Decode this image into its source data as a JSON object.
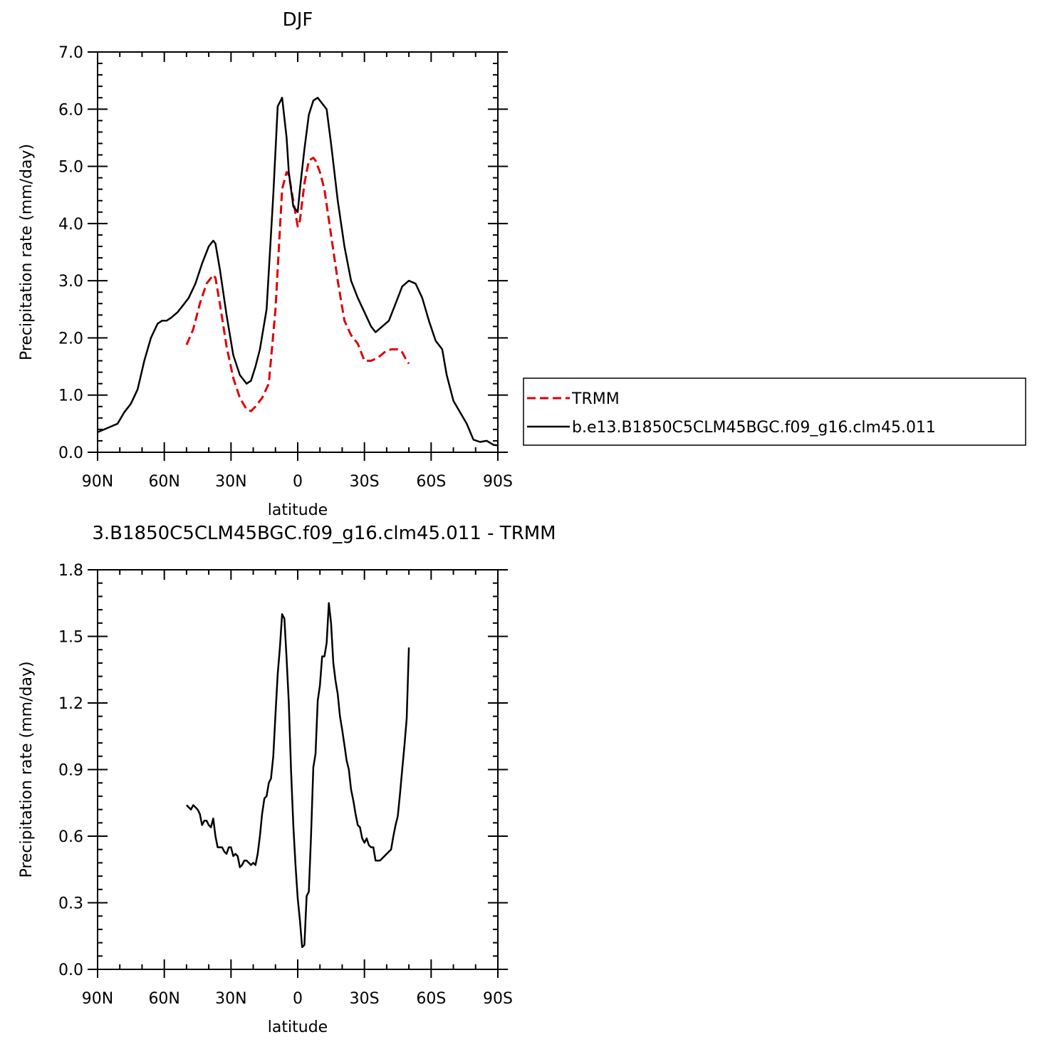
{
  "chart_data": [
    {
      "type": "line",
      "title": "DJF",
      "xlabel": "latitude",
      "ylabel": "Precipitation rate (mm/day)",
      "xlim": [
        90,
        -90
      ],
      "ylim": [
        0,
        7
      ],
      "xticks": [
        90,
        60,
        30,
        0,
        -30,
        -60,
        -90
      ],
      "xtick_labels": [
        "90N",
        "60N",
        "30N",
        "0",
        "30S",
        "60S",
        "90S"
      ],
      "yticks": [
        0,
        1,
        2,
        3,
        4,
        5,
        6,
        7
      ],
      "ytick_labels": [
        "0.0",
        "1.0",
        "2.0",
        "3.0",
        "4.0",
        "5.0",
        "6.0",
        "7.0"
      ],
      "legend_position": "right",
      "series": [
        {
          "name": "TRMM",
          "color": "#e00000",
          "dash": true,
          "x": [
            50,
            47,
            44,
            41,
            38,
            37,
            35,
            32,
            29,
            26,
            23,
            21,
            19,
            16,
            13,
            10,
            7,
            5,
            4,
            2,
            0,
            -1,
            -3,
            -5,
            -7,
            -8,
            -10,
            -12,
            -15,
            -18,
            -21,
            -24,
            -27,
            -30,
            -33,
            -36,
            -39,
            -42,
            -45,
            -47,
            -49,
            -50
          ],
          "y": [
            1.88,
            2.15,
            2.6,
            2.95,
            3.1,
            3.05,
            2.6,
            1.85,
            1.3,
            0.95,
            0.75,
            0.72,
            0.8,
            0.95,
            1.2,
            2.5,
            4.6,
            4.9,
            4.85,
            4.4,
            3.95,
            4.05,
            4.7,
            5.1,
            5.15,
            5.1,
            4.9,
            4.6,
            3.8,
            3.0,
            2.3,
            2.05,
            1.9,
            1.6,
            1.6,
            1.65,
            1.75,
            1.8,
            1.8,
            1.75,
            1.6,
            1.55
          ]
        },
        {
          "name": "b.e13.B1850C5CLM45BGC.f09_g16.clm45.011",
          "color": "#000000",
          "dash": false,
          "x": [
            90,
            87,
            84,
            81,
            78,
            75,
            72,
            69,
            66,
            63,
            61,
            59,
            57,
            54,
            51,
            49,
            46,
            43,
            40,
            38,
            37,
            35,
            32,
            29,
            26,
            23,
            21,
            19,
            17,
            14,
            11,
            9,
            7,
            5,
            4,
            2,
            0,
            -1,
            -3,
            -5,
            -7,
            -9,
            -11,
            -13,
            -15,
            -18,
            -21,
            -24,
            -27,
            -30,
            -33,
            -35,
            -38,
            -41,
            -44,
            -47,
            -50,
            -53,
            -56,
            -59,
            -62,
            -65,
            -67,
            -70,
            -73,
            -76,
            -79,
            -82,
            -85,
            -88,
            -90
          ],
          "y": [
            0.35,
            0.4,
            0.45,
            0.5,
            0.7,
            0.85,
            1.1,
            1.6,
            2.0,
            2.25,
            2.3,
            2.3,
            2.35,
            2.45,
            2.6,
            2.7,
            2.95,
            3.3,
            3.6,
            3.7,
            3.65,
            3.2,
            2.4,
            1.7,
            1.35,
            1.2,
            1.25,
            1.5,
            1.8,
            2.5,
            4.5,
            6.05,
            6.2,
            5.5,
            4.9,
            4.3,
            4.2,
            4.6,
            5.3,
            5.9,
            6.15,
            6.2,
            6.1,
            6.0,
            5.4,
            4.4,
            3.6,
            3.0,
            2.7,
            2.45,
            2.2,
            2.1,
            2.2,
            2.3,
            2.6,
            2.9,
            3.0,
            2.95,
            2.7,
            2.3,
            1.95,
            1.8,
            1.35,
            0.9,
            0.7,
            0.5,
            0.22,
            0.18,
            0.2,
            0.13,
            0.12
          ]
        }
      ]
    },
    {
      "type": "line",
      "title": "3.B1850C5CLM45BGC.f09_g16.clm45.011 - TRMM",
      "xlabel": "latitude",
      "ylabel": "Precipitation rate (mm/day)",
      "xlim": [
        90,
        -90
      ],
      "ylim": [
        0,
        1.8
      ],
      "xticks": [
        90,
        60,
        30,
        0,
        -30,
        -60,
        -90
      ],
      "xtick_labels": [
        "90N",
        "60N",
        "30N",
        "0",
        "30S",
        "60S",
        "90S"
      ],
      "yticks": [
        0,
        0.3,
        0.6,
        0.9,
        1.2,
        1.5,
        1.8
      ],
      "ytick_labels": [
        "0.0",
        "0.3",
        "0.6",
        "0.9",
        "1.2",
        "1.5",
        "1.8"
      ],
      "series": [
        {
          "color": "#000000",
          "dash": false,
          "x": [
            50,
            48,
            47,
            45,
            44,
            43,
            42,
            41,
            40,
            39,
            38,
            37,
            36,
            35,
            34,
            33,
            32,
            31,
            30,
            29,
            28,
            27,
            26,
            25,
            24,
            23,
            22,
            21,
            20,
            19,
            18,
            17,
            16,
            15,
            14,
            13,
            12,
            11,
            10,
            9,
            8,
            7,
            6,
            5,
            4,
            3,
            2,
            1,
            0,
            -1,
            -2,
            -3,
            -4,
            -5,
            -6,
            -7,
            -8,
            -9,
            -10,
            -11,
            -12,
            -13,
            -14,
            -15,
            -16,
            -17,
            -18,
            -19,
            -20,
            -21,
            -22,
            -23,
            -24,
            -25,
            -26,
            -27,
            -28,
            -29,
            -30,
            -31,
            -32,
            -33,
            -34,
            -35,
            -36,
            -37,
            -38,
            -39,
            -40,
            -41,
            -42,
            -43,
            -44,
            -45,
            -46,
            -47,
            -48,
            -49,
            -50
          ],
          "y": [
            0.74,
            0.72,
            0.74,
            0.72,
            0.7,
            0.65,
            0.67,
            0.67,
            0.65,
            0.64,
            0.68,
            0.6,
            0.55,
            0.55,
            0.55,
            0.53,
            0.52,
            0.55,
            0.55,
            0.51,
            0.52,
            0.51,
            0.46,
            0.47,
            0.49,
            0.49,
            0.48,
            0.47,
            0.48,
            0.47,
            0.52,
            0.6,
            0.7,
            0.77,
            0.78,
            0.84,
            0.86,
            0.96,
            1.15,
            1.33,
            1.45,
            1.6,
            1.58,
            1.4,
            1.2,
            0.9,
            0.65,
            0.47,
            0.32,
            0.22,
            0.1,
            0.11,
            0.33,
            0.35,
            0.6,
            0.91,
            0.97,
            1.21,
            1.28,
            1.41,
            1.41,
            1.47,
            1.65,
            1.56,
            1.38,
            1.3,
            1.24,
            1.14,
            1.08,
            1.01,
            0.94,
            0.9,
            0.81,
            0.76,
            0.7,
            0.65,
            0.64,
            0.59,
            0.57,
            0.59,
            0.56,
            0.55,
            0.55,
            0.49,
            0.49,
            0.49,
            0.5,
            0.51,
            0.52,
            0.53,
            0.54,
            0.6,
            0.65,
            0.69,
            0.79,
            0.9,
            1.01,
            1.13,
            1.45
          ]
        }
      ]
    }
  ]
}
